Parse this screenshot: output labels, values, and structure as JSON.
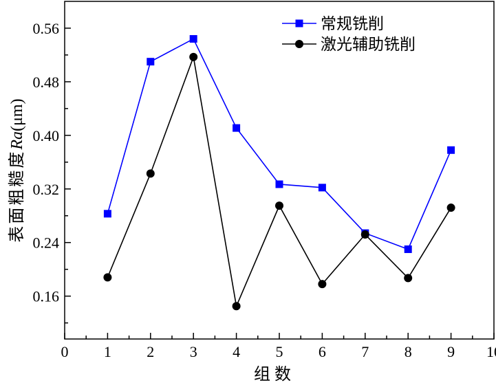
{
  "chart_data": {
    "type": "line",
    "x": [
      1,
      2,
      3,
      4,
      5,
      6,
      7,
      8,
      9
    ],
    "series": [
      {
        "name": "常规铣削",
        "color": "#0000ff",
        "marker": "square",
        "values": [
          0.283,
          0.51,
          0.544,
          0.411,
          0.327,
          0.322,
          0.254,
          0.23,
          0.378
        ]
      },
      {
        "name": "激光辅助铣削",
        "color": "#000000",
        "marker": "circle",
        "values": [
          0.188,
          0.343,
          0.517,
          0.145,
          0.295,
          0.178,
          0.252,
          0.187,
          0.292
        ]
      }
    ],
    "xlabel": "组数",
    "ylabel_parts": [
      "表面粗糙度",
      "Ra",
      "(μm)"
    ],
    "xlim": [
      0,
      10
    ],
    "ylim": [
      0.096,
      0.6
    ],
    "x_ticks": [
      0,
      1,
      2,
      3,
      4,
      5,
      6,
      7,
      8,
      9,
      10
    ],
    "y_ticks": [
      0.16,
      0.24,
      0.32,
      0.4,
      0.48,
      0.56
    ],
    "y_tick_labels": [
      "0.16",
      "0.24",
      "0.32",
      "0.40",
      "0.48",
      "0.56"
    ],
    "grid": false,
    "legend_position": "top-right"
  }
}
